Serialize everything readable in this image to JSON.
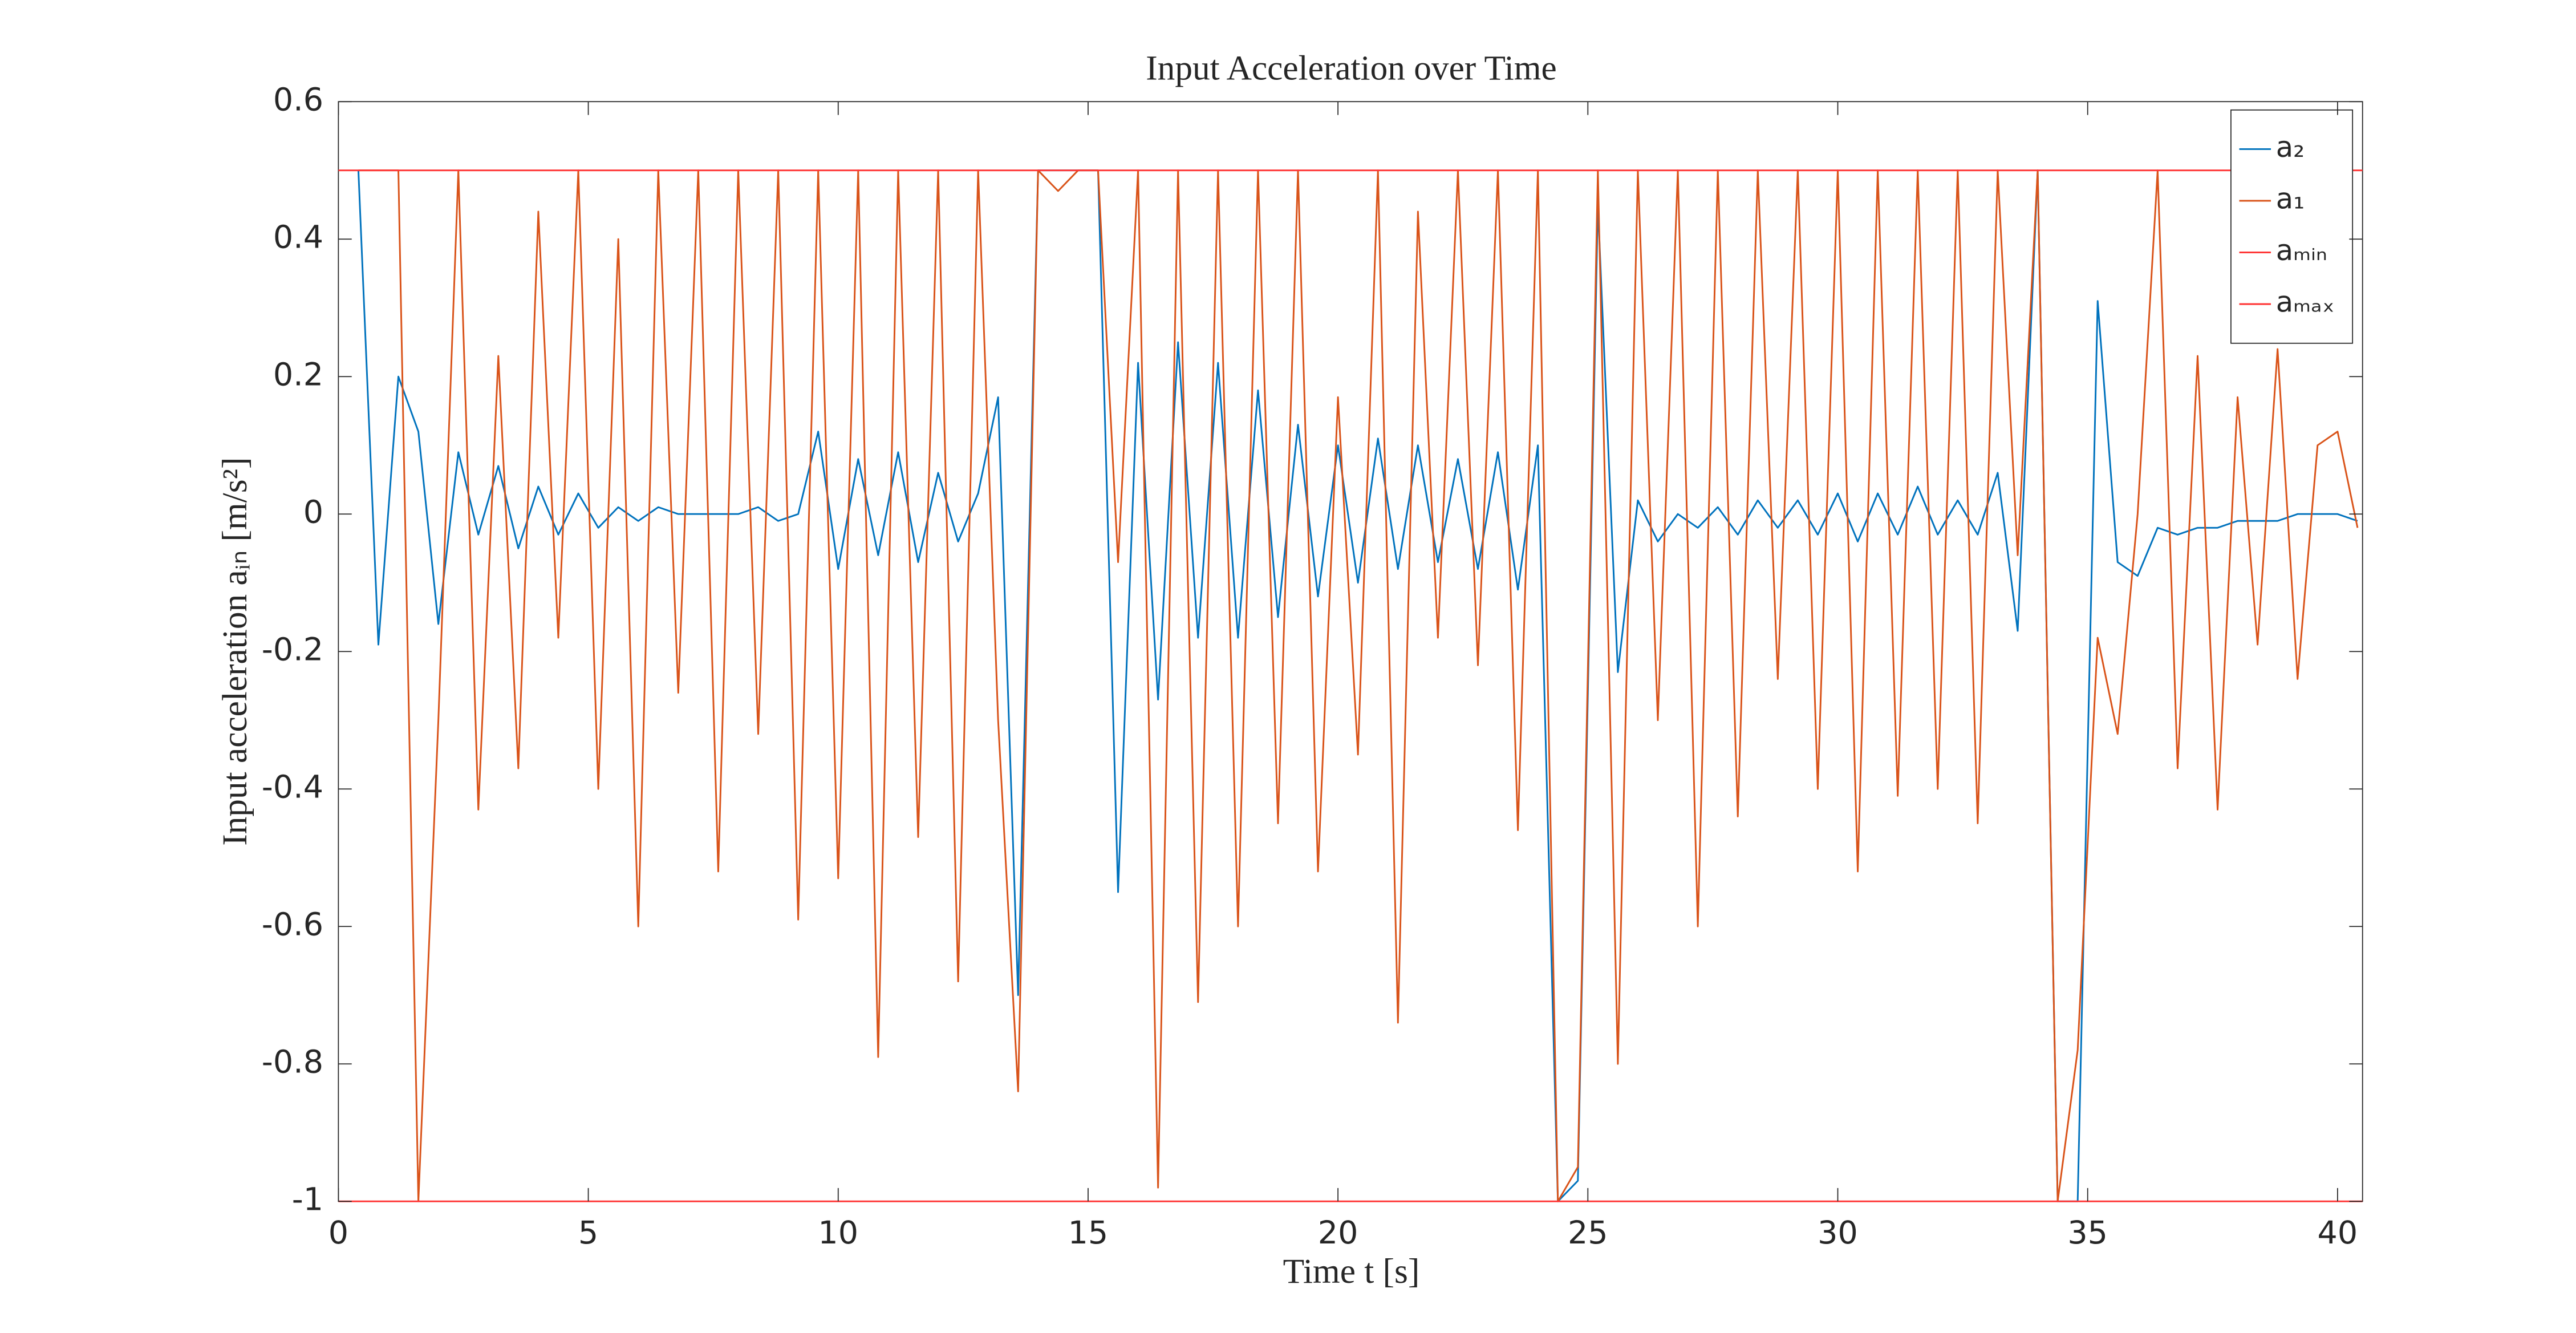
{
  "chart_data": {
    "type": "line",
    "title": "Input Acceleration over Time",
    "xlabel": "Time t [s]",
    "ylabel": "Input acceleration aᵢₙ [m/s²]",
    "x": [
      0.4,
      0.8,
      1.2,
      1.6,
      2.0,
      2.4,
      2.8,
      3.2,
      3.6,
      4.0,
      4.4,
      4.8,
      5.2,
      5.6,
      6.0,
      6.4,
      6.8,
      7.2,
      7.6,
      8.0,
      8.4,
      8.8,
      9.2,
      9.6,
      10.0,
      10.4,
      10.8,
      11.2,
      11.6,
      12.0,
      12.4,
      12.8,
      13.2,
      13.6,
      14.0,
      14.4,
      14.8,
      15.2,
      15.6,
      16.0,
      16.4,
      16.8,
      17.2,
      17.6,
      18.0,
      18.4,
      18.8,
      19.2,
      19.6,
      20.0,
      20.4,
      20.8,
      21.2,
      21.6,
      22.0,
      22.4,
      22.8,
      23.2,
      23.6,
      24.0,
      24.4,
      24.8,
      25.2,
      25.6,
      26.0,
      26.4,
      26.8,
      27.2,
      27.6,
      28.0,
      28.4,
      28.8,
      29.2,
      29.6,
      30.0,
      30.4,
      30.8,
      31.2,
      31.6,
      32.0,
      32.4,
      32.8,
      33.2,
      33.6,
      34.0,
      34.4,
      34.8,
      35.2,
      35.6,
      36.0,
      36.4,
      36.8,
      37.2,
      37.6,
      38.0,
      38.4,
      38.8,
      39.2,
      39.6,
      40.0,
      40.4
    ],
    "series": [
      {
        "name": "a₂",
        "color": "#0072bd",
        "values": [
          0.5,
          -0.19,
          0.2,
          0.12,
          -0.16,
          0.09,
          -0.03,
          0.07,
          -0.05,
          0.04,
          -0.03,
          0.03,
          -0.02,
          0.01,
          -0.01,
          0.01,
          0,
          0,
          0,
          0,
          0.01,
          -0.01,
          0,
          0.12,
          -0.08,
          0.08,
          -0.06,
          0.09,
          -0.07,
          0.06,
          -0.04,
          0.03,
          0.17,
          -0.7,
          0.5,
          0.5,
          0.5,
          0.5,
          -0.55,
          0.22,
          -0.27,
          0.25,
          -0.18,
          0.22,
          -0.18,
          0.18,
          -0.15,
          0.13,
          -0.12,
          0.1,
          -0.1,
          0.11,
          -0.08,
          0.1,
          -0.07,
          0.08,
          -0.08,
          0.09,
          -0.11,
          0.1,
          -1,
          -0.97,
          0.45,
          -0.23,
          0.02,
          -0.04,
          0,
          -0.02,
          0.01,
          -0.03,
          0.02,
          -0.02,
          0.02,
          -0.03,
          0.03,
          -0.04,
          0.03,
          -0.03,
          0.04,
          -0.03,
          0.02,
          -0.03,
          0.06,
          -0.17,
          0.5,
          -1,
          -1,
          0.31,
          -0.07,
          -0.09,
          -0.02,
          -0.03,
          -0.02,
          -0.02,
          -0.01,
          -0.01,
          -0.01,
          0,
          0,
          0,
          -0.01
        ]
      },
      {
        "name": "a₁",
        "color": "#d95319",
        "values": [
          0.5,
          0.5,
          0.5,
          -1,
          -0.3,
          0.5,
          -0.43,
          0.23,
          -0.37,
          0.44,
          -0.18,
          0.5,
          -0.4,
          0.4,
          -0.6,
          0.5,
          -0.26,
          0.5,
          -0.52,
          0.5,
          -0.32,
          0.5,
          -0.59,
          0.5,
          -0.53,
          0.5,
          -0.79,
          0.5,
          -0.47,
          0.5,
          -0.68,
          0.5,
          -0.3,
          -0.84,
          0.5,
          0.47,
          0.5,
          0.5,
          -0.07,
          0.5,
          -0.98,
          0.5,
          -0.71,
          0.5,
          -0.6,
          0.5,
          -0.45,
          0.5,
          -0.52,
          0.17,
          -0.35,
          0.5,
          -0.74,
          0.44,
          -0.18,
          0.5,
          -0.22,
          0.5,
          -0.46,
          0.5,
          -1,
          -0.95,
          0.5,
          -0.8,
          0.5,
          -0.3,
          0.5,
          -0.6,
          0.5,
          -0.44,
          0.5,
          -0.24,
          0.5,
          -0.4,
          0.5,
          -0.52,
          0.5,
          -0.41,
          0.5,
          -0.4,
          0.5,
          -0.45,
          0.5,
          -0.06,
          0.5,
          -1,
          -0.78,
          -0.18,
          -0.32,
          0,
          0.5,
          -0.37,
          0.23,
          -0.43,
          0.17,
          -0.19,
          0.24,
          -0.24,
          0.1,
          0.12,
          -0.02
        ]
      },
      {
        "name": "aₘᵢₙ",
        "color": "#ff3333",
        "x": [
          0,
          40.5
        ],
        "values": [
          -1,
          -1
        ]
      },
      {
        "name": "aₘₐₓ",
        "color": "#ff3333",
        "x": [
          0,
          40.5
        ],
        "values": [
          0.5,
          0.5
        ]
      }
    ],
    "xlim": [
      0,
      40.5
    ],
    "ylim": [
      -1,
      0.6
    ],
    "xticks": [
      0,
      5,
      10,
      15,
      20,
      25,
      30,
      35,
      40
    ],
    "yticks": [
      -1,
      -0.8,
      -0.6,
      -0.4,
      -0.2,
      0,
      0.2,
      0.4,
      0.6
    ],
    "legend": "upper right"
  }
}
